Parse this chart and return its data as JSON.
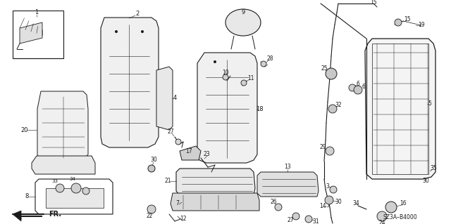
{
  "bg_color": "#ffffff",
  "line_color": "#1a1a1a",
  "diagram_code": "SZ3A-B4000",
  "fr_label": "FR.",
  "figsize": [
    6.4,
    3.19
  ],
  "dpi": 100,
  "lw_main": 0.7,
  "lw_thin": 0.4
}
